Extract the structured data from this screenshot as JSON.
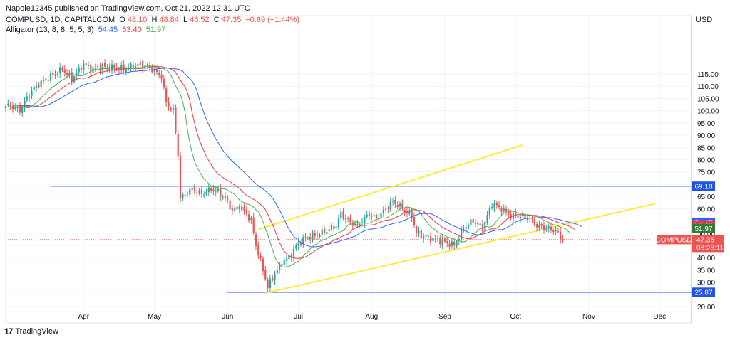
{
  "header": {
    "published": "Napole12345 published on TradingView.com, Oct 21, 2022 12:31 UTC",
    "symbol": "COMPUSD, 1D, CAPITALCOM",
    "o_label": "O",
    "o": "48.10",
    "h_label": "H",
    "h": "48.84",
    "l_label": "L",
    "l": "46.52",
    "c_label": "C",
    "c": "47.35",
    "change": "−0.69 (−1.44%)",
    "indicator": "Alligator (13, 8, 8, 5, 5, 3)",
    "jaw": "54.45",
    "teeth": "53.40",
    "lips": "51.97"
  },
  "footer": {
    "brand": "TradingView"
  },
  "chart_data": {
    "type": "candlestick",
    "currency": "USD",
    "y_ticks": [
      "20.00",
      "25.00",
      "30.00",
      "35.00",
      "40.00",
      "45.00",
      "50.00",
      "55.00",
      "60.00",
      "65.00",
      "70.00",
      "75.00",
      "80.00",
      "85.00",
      "90.00",
      "95.00",
      "100.00",
      "105.00",
      "110.00",
      "115.00"
    ],
    "x_ticks": [
      "Apr",
      "May",
      "Jun",
      "Jul",
      "Aug",
      "Sep",
      "Oct",
      "Nov",
      "Dec"
    ],
    "ylim": [
      19,
      120
    ],
    "colors": {
      "up": "#26a69a",
      "down": "#ef5350",
      "jaw": "#2962ff",
      "teeth": "#f23645",
      "lips": "#4caf50",
      "level": "#1e53e5",
      "channel": "#ffeb3b"
    },
    "price_labels": [
      {
        "text": "69.18",
        "value": 69.18,
        "color": "#1e53e5"
      },
      {
        "text": "54.45",
        "value": 54.45,
        "color": "#2962ff"
      },
      {
        "text": "53.40",
        "value": 53.4,
        "color": "#f23645"
      },
      {
        "text": "51.97",
        "value": 51.97,
        "color": "#2e7d32"
      },
      {
        "text": "25.87",
        "value": 25.87,
        "color": "#1e53e5"
      }
    ],
    "last_price": {
      "symbol": "COMPUSD",
      "price": "47.35",
      "countdown": "08:28:11",
      "value": 47.35,
      "color": "#ef5350"
    },
    "horizontal_levels": [
      69.18,
      25.87
    ],
    "channel_upper": {
      "from": [
        "2022-06-14",
        51.5
      ],
      "to": [
        "2022-10-04",
        86
      ]
    },
    "channel_lower": {
      "from": [
        "2022-06-17",
        25.5
      ],
      "to": [
        "2022-11-29",
        62
      ]
    },
    "anchors": [
      [
        "2022-03-01",
        102
      ],
      [
        "2022-03-05",
        100
      ],
      [
        "2022-03-09",
        107
      ],
      [
        "2022-03-13",
        111
      ],
      [
        "2022-03-18",
        114
      ],
      [
        "2022-03-23",
        117
      ],
      [
        "2022-03-27",
        113
      ],
      [
        "2022-04-01",
        119
      ],
      [
        "2022-04-04",
        117
      ],
      [
        "2022-04-09",
        118
      ],
      [
        "2022-04-18",
        117
      ],
      [
        "2022-04-25",
        119
      ],
      [
        "2022-04-30",
        117
      ],
      [
        "2022-05-01",
        116
      ],
      [
        "2022-05-04",
        114
      ],
      [
        "2022-05-06",
        103
      ],
      [
        "2022-05-09",
        100
      ],
      [
        "2022-05-11",
        82
      ],
      [
        "2022-05-12",
        64
      ],
      [
        "2022-05-14",
        66
      ],
      [
        "2022-05-17",
        68
      ],
      [
        "2022-05-21",
        66
      ],
      [
        "2022-05-25",
        68
      ],
      [
        "2022-05-28",
        67
      ],
      [
        "2022-06-01",
        63
      ],
      [
        "2022-06-03",
        59
      ],
      [
        "2022-06-06",
        61
      ],
      [
        "2022-06-09",
        58
      ],
      [
        "2022-06-11",
        55
      ],
      [
        "2022-06-13",
        45
      ],
      [
        "2022-06-16",
        35
      ],
      [
        "2022-06-18",
        28
      ],
      [
        "2022-06-20",
        32
      ],
      [
        "2022-06-24",
        38
      ],
      [
        "2022-06-27",
        40
      ],
      [
        "2022-07-01",
        46
      ],
      [
        "2022-07-04",
        48
      ],
      [
        "2022-07-08",
        49
      ],
      [
        "2022-07-13",
        51
      ],
      [
        "2022-07-17",
        53
      ],
      [
        "2022-07-19",
        58
      ],
      [
        "2022-07-22",
        55
      ],
      [
        "2022-07-26",
        53
      ],
      [
        "2022-07-31",
        58
      ],
      [
        "2022-08-03",
        56
      ],
      [
        "2022-08-07",
        60
      ],
      [
        "2022-08-10",
        63
      ],
      [
        "2022-08-14",
        60
      ],
      [
        "2022-08-18",
        57
      ],
      [
        "2022-08-20",
        50
      ],
      [
        "2022-08-25",
        48
      ],
      [
        "2022-08-30",
        47
      ],
      [
        "2022-09-05",
        45
      ],
      [
        "2022-09-09",
        52
      ],
      [
        "2022-09-13",
        55
      ],
      [
        "2022-09-17",
        52
      ],
      [
        "2022-09-21",
        62
      ],
      [
        "2022-09-25",
        60
      ],
      [
        "2022-09-29",
        57
      ],
      [
        "2022-10-03",
        57
      ],
      [
        "2022-10-07",
        56
      ],
      [
        "2022-10-10",
        53
      ],
      [
        "2022-10-14",
        52
      ],
      [
        "2022-10-18",
        51
      ],
      [
        "2022-10-20",
        48
      ],
      [
        "2022-10-21",
        47.35
      ]
    ]
  }
}
